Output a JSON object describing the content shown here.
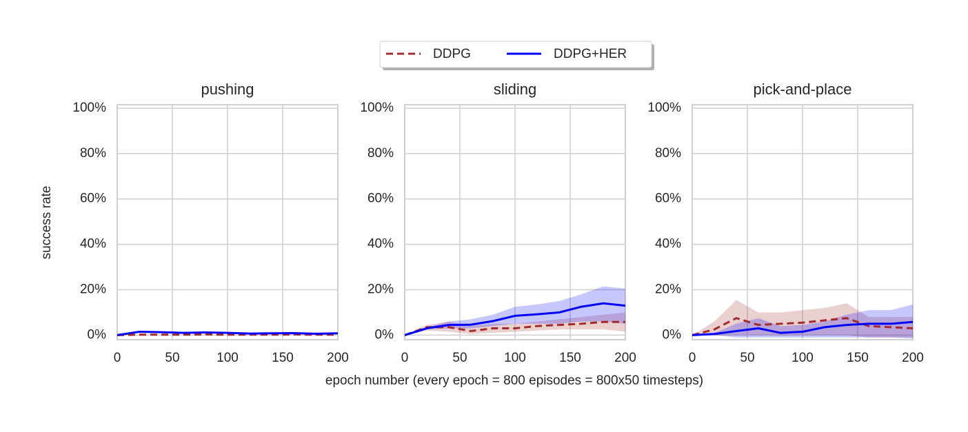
{
  "chart_data": [
    {
      "type": "line",
      "title": "pushing",
      "ylabel": "success rate",
      "xlabel": "epoch number (every epoch = 800 episodes = 800x50 timesteps)",
      "legend": "top-center",
      "grid": true,
      "x": [
        0,
        20,
        40,
        60,
        80,
        100,
        120,
        140,
        160,
        180,
        200
      ],
      "xlim": [
        0,
        200
      ],
      "xticks": [
        0,
        50,
        100,
        150,
        200
      ],
      "ylim": [
        -2,
        101.5
      ],
      "yticks": [
        {
          "value": 0,
          "label": "0%"
        },
        {
          "value": 20,
          "label": "20%"
        },
        {
          "value": 40,
          "label": "40%"
        },
        {
          "value": 60,
          "label": "60%"
        },
        {
          "value": 80,
          "label": "80%"
        },
        {
          "value": 100,
          "label": "100%"
        }
      ],
      "series": [
        {
          "name": "DDPG",
          "color": "#a52a2a",
          "style": "dashed",
          "values": [
            0,
            0.2,
            0.2,
            0.2,
            0.3,
            0.2,
            0.2,
            0.2,
            0.3,
            0.2,
            0.2
          ]
        },
        {
          "name": "DDPG+HER",
          "color": "#0000ff",
          "style": "solid",
          "values": [
            0,
            1.5,
            1.3,
            1,
            1.2,
            1,
            0.7,
            0.8,
            0.9,
            0.6,
            0.8
          ]
        }
      ]
    },
    {
      "type": "line",
      "title": "sliding",
      "grid": true,
      "x": [
        0,
        20,
        40,
        60,
        80,
        100,
        120,
        140,
        160,
        180,
        200
      ],
      "xlim": [
        0,
        200
      ],
      "xticks": [
        0,
        50,
        100,
        150,
        200
      ],
      "ylim": [
        -2,
        101.5
      ],
      "yticks": [
        {
          "value": 0,
          "label": "0%"
        },
        {
          "value": 20,
          "label": "20%"
        },
        {
          "value": 40,
          "label": "40%"
        },
        {
          "value": 60,
          "label": "60%"
        },
        {
          "value": 80,
          "label": "80%"
        },
        {
          "value": 100,
          "label": "100%"
        }
      ],
      "series": [
        {
          "color": "#a52a2a",
          "style": "dashed",
          "values": [
            0,
            3.5,
            3.5,
            1.8,
            3,
            3,
            4,
            4.5,
            5,
            5.8,
            5.8
          ],
          "lower": [
            0,
            2,
            1.5,
            0.5,
            1,
            1.5,
            2,
            2.5,
            2.5,
            2.5,
            1.5
          ],
          "upper": [
            0,
            4.5,
            6,
            4,
            5,
            5,
            6,
            7,
            8,
            9,
            10
          ]
        },
        {
          "color": "#0000ff",
          "style": "solid",
          "values": [
            0,
            3,
            4.5,
            4.6,
            6.2,
            8.5,
            9.2,
            10,
            12.5,
            14,
            13
          ],
          "lower": [
            0,
            2.5,
            3,
            3,
            4,
            5,
            5,
            5,
            6,
            6,
            5
          ],
          "upper": [
            0,
            3.5,
            6,
            7,
            9,
            12.5,
            13.5,
            15,
            18,
            21.5,
            20.5
          ]
        }
      ]
    },
    {
      "type": "line",
      "title": "pick-and-place",
      "grid": true,
      "x": [
        0,
        20,
        40,
        60,
        80,
        100,
        120,
        140,
        160,
        180,
        200
      ],
      "xlim": [
        0,
        200
      ],
      "xticks": [
        0,
        50,
        100,
        150,
        200
      ],
      "ylim": [
        -2,
        101.5
      ],
      "yticks": [
        {
          "value": 0,
          "label": "0%"
        },
        {
          "value": 20,
          "label": "20%"
        },
        {
          "value": 40,
          "label": "40%"
        },
        {
          "value": 60,
          "label": "60%"
        },
        {
          "value": 80,
          "label": "80%"
        },
        {
          "value": 100,
          "label": "100%"
        }
      ],
      "series": [
        {
          "color": "#a52a2a",
          "style": "dashed",
          "values": [
            0,
            2.5,
            7.5,
            4.5,
            5,
            5.5,
            6.5,
            7.5,
            4,
            3.5,
            3
          ],
          "lower": [
            0,
            0,
            0,
            0,
            0,
            0,
            0,
            0,
            -1,
            -1,
            -1
          ],
          "upper": [
            0,
            6,
            15.5,
            10,
            10,
            11,
            12,
            14,
            8,
            8,
            8
          ]
        },
        {
          "color": "#0000ff",
          "style": "solid",
          "values": [
            0,
            0.5,
            1.8,
            3,
            1,
            1.5,
            3.5,
            4.5,
            5,
            5,
            5.8
          ],
          "lower": [
            0,
            0,
            -1,
            -1,
            -1,
            -1,
            -1,
            -1,
            -1,
            -1,
            -1.5
          ],
          "upper": [
            0,
            1,
            5,
            7.5,
            4,
            4.5,
            6,
            9,
            11,
            11,
            13.5
          ]
        }
      ]
    }
  ]
}
